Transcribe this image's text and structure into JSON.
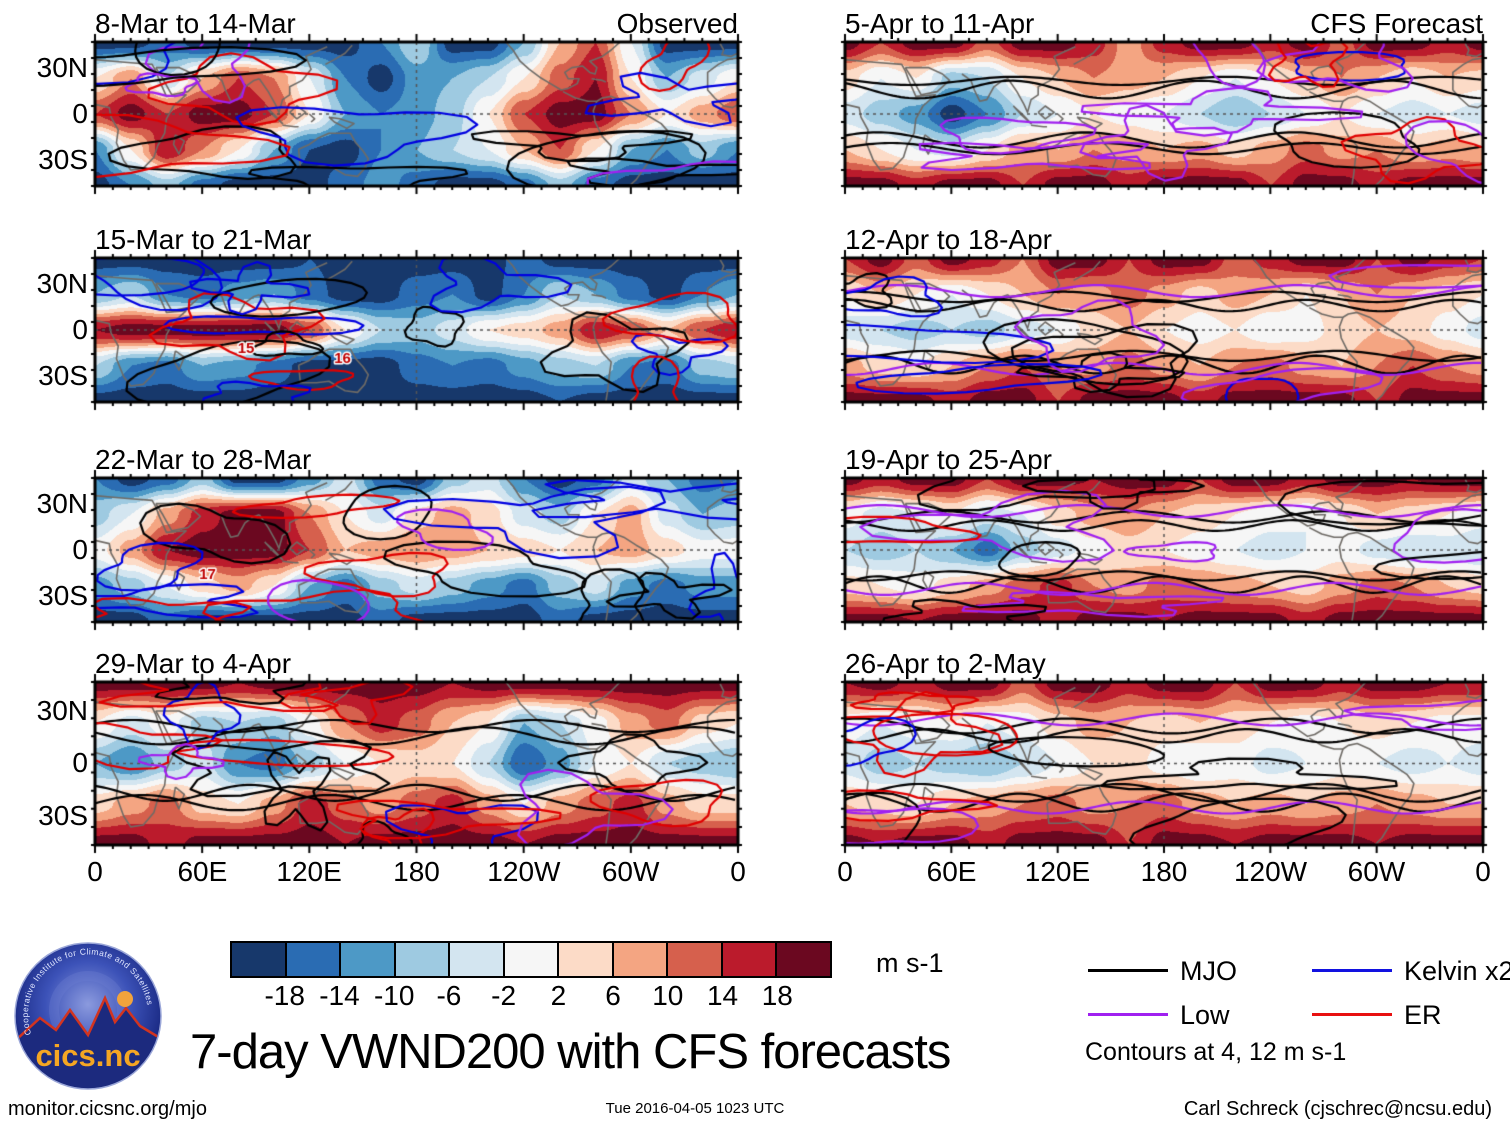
{
  "page": {
    "title": "7-day VWND200 with CFS forecasts",
    "footer": {
      "left": "monitor.cicsnc.org/mjo",
      "center": "Tue 2016-04-05 1023 UTC",
      "right": "Carl Schreck (cjschrec@ncsu.edu)"
    }
  },
  "logo": {
    "name": "cics.nc",
    "ring_text": "Cooperative Institute for Climate and Satellites"
  },
  "axes": {
    "x_ticks": [
      "0",
      "60E",
      "120E",
      "180",
      "120W",
      "60W",
      "0"
    ],
    "y_ticks": [
      "30N",
      "0",
      "30S"
    ]
  },
  "colorbar": {
    "tick_labels": [
      "-18",
      "-14",
      "-10",
      "-6",
      "-2",
      "2",
      "6",
      "10",
      "14",
      "18"
    ],
    "unit": "m s-1"
  },
  "legend": {
    "entries": [
      {
        "label": "MJO",
        "color": "#000000"
      },
      {
        "label": "Low",
        "color": "#a020f0"
      },
      {
        "label": "Kelvin x2",
        "color": "#1212e0"
      },
      {
        "label": "ER",
        "color": "#e81010"
      }
    ],
    "note": "Contours at 4, 12 m s-1"
  },
  "chart_data": {
    "type": "heatmap",
    "title": "7-day VWND200 with CFS forecasts",
    "unit": "m s-1",
    "x_range_deg_lon": [
      0,
      360
    ],
    "y_range_deg_lat": [
      -45,
      45
    ],
    "lon_step_deg": 20,
    "lat_rows_deg": [
      45,
      22.5,
      0,
      -22.5,
      -45
    ],
    "levels": [
      -18,
      -14,
      -10,
      -6,
      -2,
      2,
      6,
      10,
      14,
      18
    ],
    "palette": [
      "#17386b",
      "#2a6cb3",
      "#4d99c6",
      "#9ecae1",
      "#d3e5f0",
      "#f6f6f6",
      "#fcdbc7",
      "#f4a582",
      "#d6604d",
      "#bb1b2c",
      "#6b0820"
    ],
    "contour_levels_note": "Contours at 4, 12 m s-1",
    "panels": [
      {
        "title": "8-Mar to 14-Mar",
        "tag": "Observed",
        "column": "Observed",
        "grid": [
          [
            -20,
            -20,
            -16,
            -20,
            -20,
            -20,
            -20,
            -20,
            -14,
            -6,
            -20,
            -20,
            -10,
            6,
            14,
            -2,
            -20,
            -20
          ],
          [
            2,
            10,
            -6,
            6,
            14,
            10,
            -2,
            -14,
            -20,
            -12,
            -10,
            -6,
            2,
            12,
            18,
            2,
            -10,
            -4
          ],
          [
            14,
            20,
            14,
            20,
            20,
            14,
            2,
            -10,
            -14,
            -12,
            -8,
            2,
            14,
            20,
            20,
            10,
            2,
            8
          ],
          [
            -14,
            2,
            18,
            10,
            2,
            -10,
            -18,
            -20,
            -14,
            -10,
            -6,
            -2,
            6,
            14,
            2,
            -10,
            -14,
            -8
          ],
          [
            -20,
            -14,
            -8,
            -16,
            -20,
            -20,
            -20,
            -16,
            -12,
            -16,
            -20,
            -20,
            -16,
            -8,
            -16,
            -20,
            -20,
            -20
          ]
        ]
      },
      {
        "title": "15-Mar to 21-Mar",
        "column": "Observed",
        "storm_labels": [
          {
            "label": "15",
            "x": 0.235,
            "y": 0.63
          },
          {
            "label": "16",
            "x": 0.385,
            "y": 0.7
          }
        ],
        "grid": [
          [
            -20,
            -20,
            -20,
            -20,
            -20,
            -20,
            -18,
            -20,
            -20,
            -20,
            -20,
            -20,
            -16,
            -20,
            -20,
            -20,
            -20,
            -20
          ],
          [
            -10,
            -6,
            -14,
            -16,
            -12,
            -10,
            -16,
            -20,
            -20,
            -16,
            -14,
            -20,
            -14,
            -6,
            -10,
            -16,
            -20,
            -14
          ],
          [
            18,
            20,
            20,
            20,
            20,
            20,
            14,
            2,
            -6,
            -8,
            -4,
            2,
            4,
            8,
            18,
            14,
            6,
            14
          ],
          [
            -6,
            -14,
            -16,
            -10,
            -12,
            -16,
            -20,
            -20,
            -20,
            -16,
            -14,
            -16,
            -12,
            -8,
            -6,
            -14,
            -16,
            -8
          ],
          [
            -20,
            -20,
            -20,
            -20,
            -20,
            -20,
            -20,
            -20,
            -20,
            -20,
            -20,
            -20,
            -20,
            -18,
            -20,
            -20,
            -20,
            -20
          ]
        ]
      },
      {
        "title": "22-Mar to 28-Mar",
        "column": "Observed",
        "storm_labels": [
          {
            "label": "17",
            "x": 0.175,
            "y": 0.67
          }
        ],
        "grid": [
          [
            -14,
            -20,
            -16,
            -8,
            -20,
            -20,
            -12,
            -4,
            -16,
            -20,
            -8,
            -4,
            -14,
            -20,
            -16,
            -4,
            -10,
            -16
          ],
          [
            -8,
            -2,
            8,
            16,
            20,
            20,
            10,
            2,
            -4,
            4,
            8,
            4,
            -4,
            -8,
            2,
            8,
            -4,
            -10
          ],
          [
            0,
            8,
            18,
            20,
            20,
            20,
            14,
            6,
            8,
            10,
            8,
            6,
            4,
            2,
            6,
            8,
            4,
            0
          ],
          [
            -12,
            -8,
            -2,
            4,
            8,
            2,
            -10,
            -16,
            -8,
            -4,
            -8,
            -12,
            -16,
            -8,
            -4,
            -12,
            -16,
            -12
          ],
          [
            -20,
            -20,
            -16,
            -20,
            -20,
            -20,
            -20,
            -20,
            -16,
            -20,
            -20,
            -20,
            -20,
            -16,
            -20,
            -20,
            -20,
            -20
          ]
        ]
      },
      {
        "title": "29-Mar to 4-Apr",
        "column": "Observed",
        "grid": [
          [
            20,
            20,
            20,
            20,
            18,
            20,
            20,
            20,
            20,
            20,
            18,
            20,
            20,
            20,
            20,
            20,
            20,
            20
          ],
          [
            2,
            -4,
            0,
            -8,
            -6,
            -8,
            0,
            10,
            16,
            12,
            6,
            2,
            -10,
            -6,
            0,
            8,
            12,
            4
          ],
          [
            -10,
            -14,
            -8,
            -4,
            -14,
            -16,
            -8,
            -2,
            2,
            4,
            2,
            -6,
            -18,
            -12,
            -2,
            2,
            -6,
            -8
          ],
          [
            4,
            8,
            12,
            4,
            2,
            8,
            16,
            12,
            8,
            12,
            16,
            8,
            2,
            8,
            12,
            16,
            8,
            4
          ],
          [
            20,
            20,
            16,
            20,
            20,
            20,
            20,
            18,
            20,
            20,
            20,
            20,
            18,
            20,
            20,
            20,
            20,
            20
          ]
        ]
      },
      {
        "title": "5-Apr to 11-Apr",
        "tag": "CFS Forecast",
        "column": "CFS Forecast",
        "grid": [
          [
            20,
            14,
            20,
            20,
            12,
            20,
            20,
            16,
            8,
            16,
            20,
            20,
            16,
            20,
            12,
            20,
            20,
            16
          ],
          [
            4,
            -2,
            2,
            -8,
            -6,
            2,
            6,
            10,
            8,
            6,
            2,
            -2,
            2,
            6,
            10,
            6,
            2,
            6
          ],
          [
            -4,
            -8,
            -12,
            -20,
            -14,
            -6,
            -2,
            2,
            0,
            -2,
            -6,
            -10,
            -6,
            -2,
            2,
            -2,
            -4,
            -2
          ],
          [
            6,
            2,
            -2,
            -4,
            2,
            8,
            6,
            10,
            8,
            6,
            8,
            4,
            8,
            12,
            8,
            10,
            6,
            8
          ],
          [
            20,
            20,
            16,
            20,
            20,
            14,
            20,
            20,
            16,
            20,
            20,
            20,
            14,
            20,
            20,
            16,
            20,
            20
          ]
        ]
      },
      {
        "title": "12-Apr to 18-Apr",
        "column": "CFS Forecast",
        "grid": [
          [
            14,
            20,
            12,
            20,
            16,
            10,
            20,
            20,
            14,
            20,
            20,
            12,
            16,
            20,
            20,
            14,
            20,
            16
          ],
          [
            2,
            6,
            2,
            -2,
            2,
            6,
            10,
            8,
            12,
            8,
            4,
            8,
            6,
            2,
            6,
            10,
            6,
            4
          ],
          [
            -4,
            -6,
            -8,
            -6,
            -8,
            -4,
            -2,
            4,
            6,
            2,
            0,
            2,
            -2,
            0,
            4,
            6,
            4,
            0
          ],
          [
            8,
            4,
            2,
            6,
            10,
            14,
            10,
            8,
            12,
            8,
            6,
            10,
            12,
            8,
            6,
            10,
            14,
            10
          ],
          [
            20,
            20,
            20,
            16,
            20,
            20,
            14,
            20,
            20,
            20,
            16,
            20,
            20,
            20,
            20,
            14,
            20,
            20
          ]
        ]
      },
      {
        "title": "19-Apr to 25-Apr",
        "column": "CFS Forecast",
        "grid": [
          [
            20,
            16,
            20,
            20,
            14,
            20,
            20,
            18,
            20,
            20,
            14,
            20,
            20,
            16,
            20,
            20,
            18,
            20
          ],
          [
            0,
            -4,
            -2,
            2,
            -4,
            -2,
            4,
            8,
            10,
            6,
            4,
            2,
            0,
            -2,
            2,
            6,
            4,
            2
          ],
          [
            -6,
            -8,
            -6,
            -10,
            -16,
            -8,
            -4,
            0,
            4,
            2,
            0,
            -2,
            -4,
            -2,
            0,
            -4,
            -6,
            -4
          ],
          [
            4,
            2,
            0,
            4,
            8,
            12,
            16,
            10,
            8,
            12,
            10,
            8,
            6,
            4,
            8,
            12,
            10,
            6
          ],
          [
            20,
            20,
            18,
            20,
            20,
            20,
            16,
            20,
            20,
            18,
            20,
            20,
            20,
            16,
            20,
            20,
            20,
            20
          ]
        ]
      },
      {
        "title": "26-Apr to 2-May",
        "column": "CFS Forecast",
        "grid": [
          [
            18,
            20,
            16,
            20,
            20,
            12,
            20,
            20,
            16,
            20,
            20,
            14,
            20,
            20,
            16,
            20,
            20,
            18
          ],
          [
            0,
            -2,
            0,
            2,
            -2,
            0,
            4,
            8,
            6,
            4,
            6,
            4,
            2,
            0,
            2,
            4,
            2,
            0
          ],
          [
            -4,
            -8,
            -6,
            -8,
            -10,
            -6,
            -2,
            2,
            4,
            0,
            -2,
            0,
            -4,
            -2,
            0,
            -2,
            -4,
            -2
          ],
          [
            6,
            4,
            2,
            6,
            8,
            10,
            12,
            8,
            10,
            12,
            8,
            6,
            8,
            6,
            8,
            10,
            8,
            6
          ],
          [
            20,
            18,
            20,
            20,
            16,
            20,
            20,
            20,
            14,
            20,
            20,
            18,
            20,
            20,
            20,
            18,
            20,
            20
          ]
        ]
      }
    ]
  }
}
